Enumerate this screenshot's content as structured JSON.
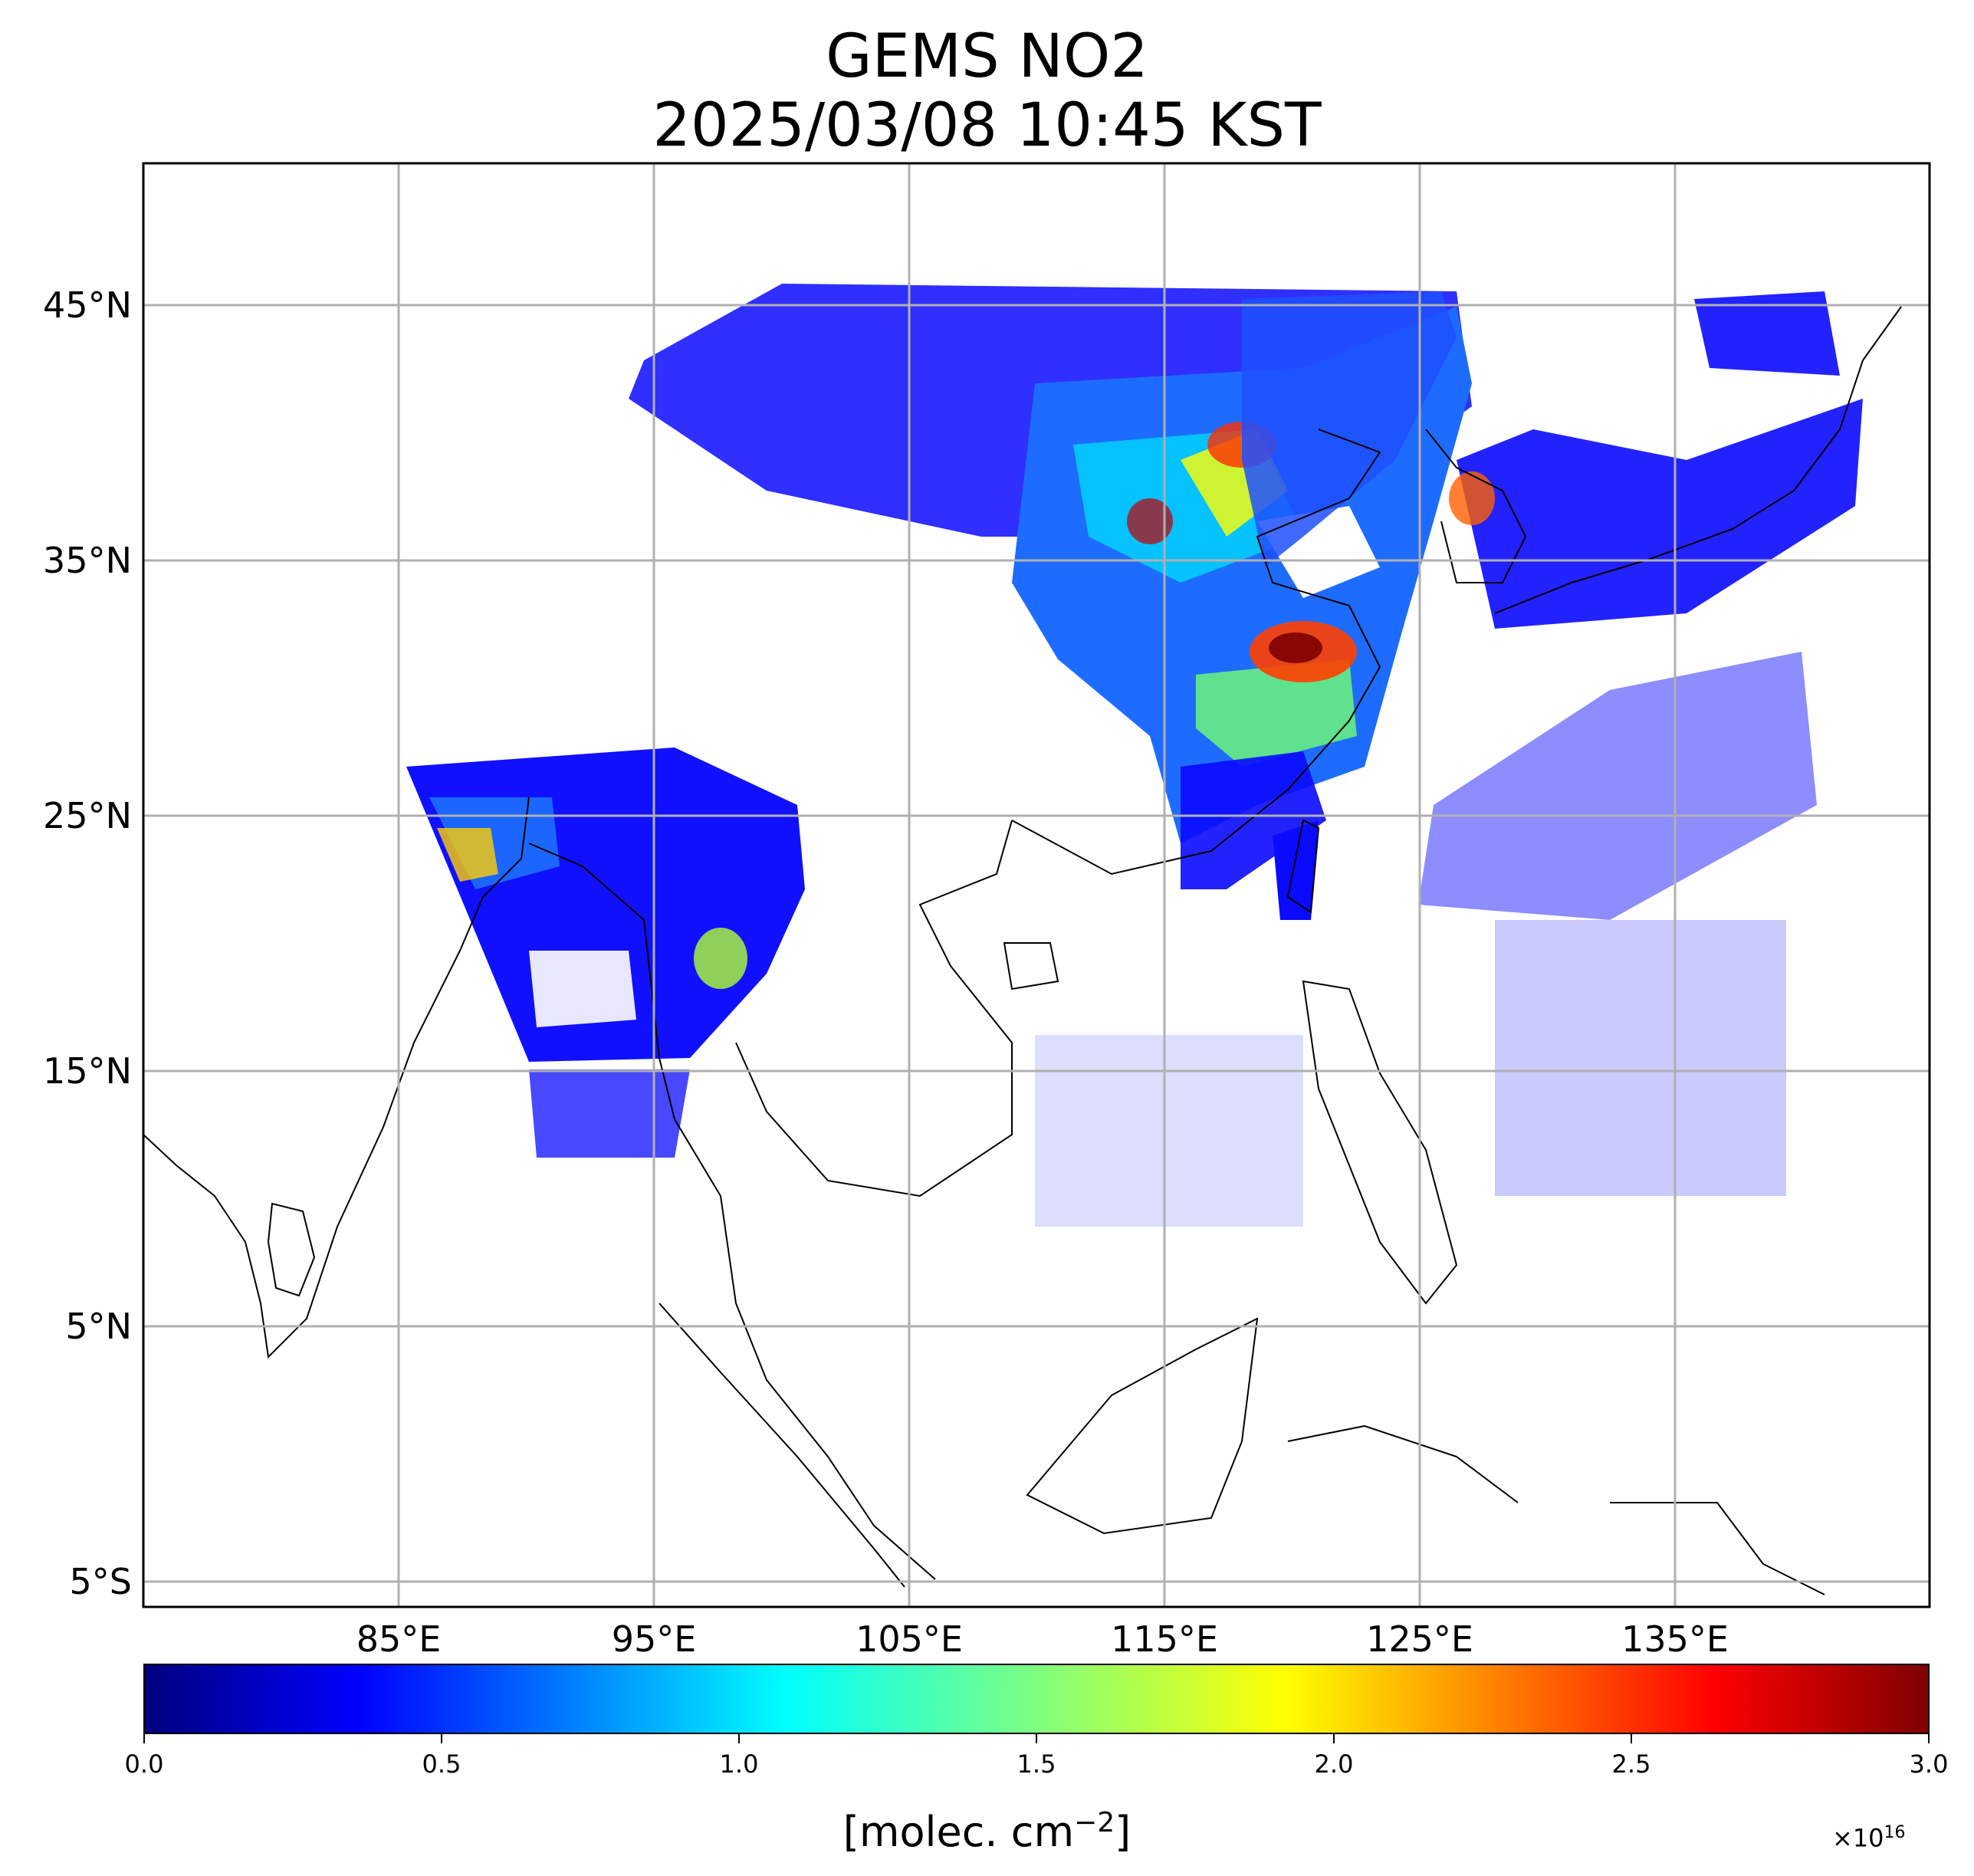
{
  "title": {
    "line1": "GEMS NO2",
    "line2": "2025/03/08 10:45 KST"
  },
  "map": {
    "lon_range": [
      75,
      145
    ],
    "lat_range": [
      -6,
      50.5
    ],
    "lat_ticks": [
      {
        "value": 45,
        "label": "45°N"
      },
      {
        "value": 35,
        "label": "35°N"
      },
      {
        "value": 25,
        "label": "25°N"
      },
      {
        "value": 15,
        "label": "15°N"
      },
      {
        "value": 5,
        "label": "5°N"
      },
      {
        "value": -5,
        "label": "5°S"
      }
    ],
    "lon_ticks": [
      {
        "value": 85,
        "label": "85°E"
      },
      {
        "value": 95,
        "label": "95°E"
      },
      {
        "value": 105,
        "label": "105°E"
      },
      {
        "value": 115,
        "label": "115°E"
      },
      {
        "value": 125,
        "label": "125°E"
      },
      {
        "value": 135,
        "label": "135°E"
      }
    ],
    "grid": true,
    "colors": {
      "grid": "#b0b0b0",
      "coast": "#000000"
    }
  },
  "colorbar": {
    "ticks": [
      "0.0",
      "0.5",
      "1.0",
      "1.5",
      "2.0",
      "2.5",
      "3.0"
    ],
    "multiplier": "×10",
    "multiplier_exp": "16",
    "unit": "[molec. cm",
    "unit_exp": "−2",
    "unit_end": "]",
    "colormap": "jet",
    "vmin": 0,
    "vmax": 3.0
  }
}
